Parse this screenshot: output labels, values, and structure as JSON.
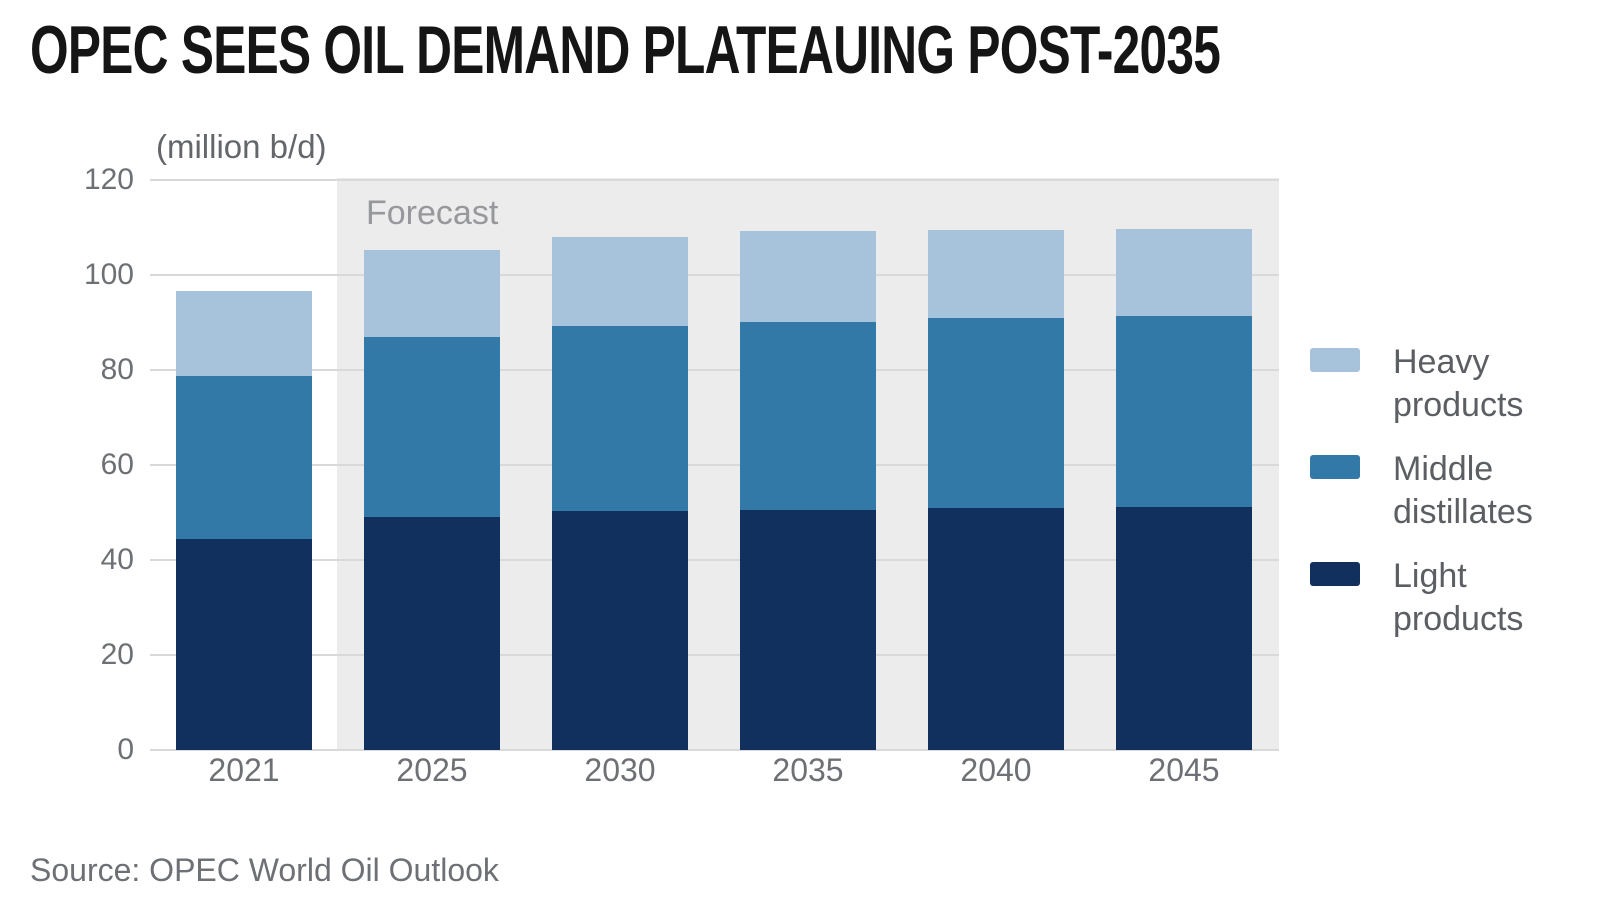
{
  "title": "OPEC SEES OIL DEMAND PLATEAUING POST-2035",
  "source": "Source: OPEC World Oil Outlook",
  "chart_data": {
    "type": "bar",
    "stacked": true,
    "title": "OPEC SEES OIL DEMAND PLATEAUING POST-2035",
    "unit_label": "(million b/d)",
    "forecast_label": "Forecast",
    "forecast_from_category": "2025",
    "categories": [
      "2021",
      "2025",
      "2030",
      "2035",
      "2040",
      "2045"
    ],
    "series": [
      {
        "name": "Light products",
        "color": "#12305e",
        "values": [
          44.5,
          49.1,
          50.4,
          50.6,
          50.9,
          51.1
        ]
      },
      {
        "name": "Middle distillates",
        "color": "#3379a8",
        "values": [
          34.2,
          37.9,
          38.8,
          39.6,
          40.0,
          40.3
        ]
      },
      {
        "name": "Heavy products",
        "color": "#a7c3dc",
        "values": [
          18.0,
          18.3,
          18.9,
          19.1,
          18.6,
          18.3
        ]
      }
    ],
    "totals": [
      96.7,
      105.3,
      108.1,
      109.3,
      109.5,
      109.7
    ],
    "xlabel": "",
    "ylabel": "(million b/d)",
    "ylim": [
      0,
      120
    ],
    "yticks": [
      0,
      20,
      40,
      60,
      80,
      100,
      120
    ],
    "grid": "horizontal",
    "legend_position": "right",
    "legend": [
      {
        "series": "Heavy products",
        "lines": "Heavy\nproducts",
        "color": "#a7c3dc"
      },
      {
        "series": "Middle distillates",
        "lines": "Middle\ndistillates",
        "color": "#3379a8"
      },
      {
        "series": "Light products",
        "lines": "Light\nproducts",
        "color": "#12305e"
      }
    ],
    "colors": {
      "background": "#ffffff",
      "forecast_band": "#ececec",
      "gridline": "#d9d9d9",
      "title_text": "#151515",
      "axis_text": "#6d7075",
      "forecast_text": "#97989c",
      "legend_text": "#5b5e63"
    }
  }
}
